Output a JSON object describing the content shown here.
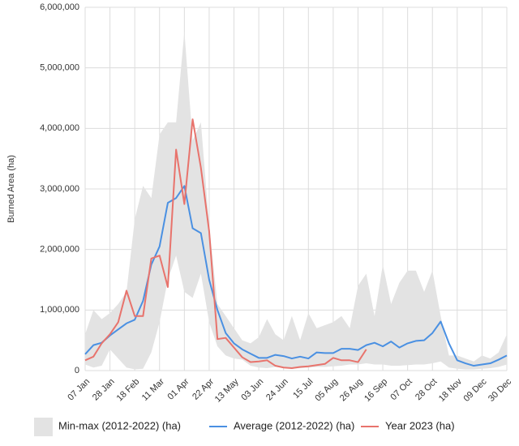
{
  "chart_data": {
    "type": "line",
    "y_label": "Burned Area (ha)",
    "categories": [
      "07 Jan",
      null,
      null,
      "28 Jan",
      null,
      null,
      "18 Feb",
      null,
      null,
      "11 Mar",
      null,
      null,
      "01 Apr",
      null,
      null,
      "22 Apr",
      null,
      null,
      "13 May",
      null,
      null,
      "03 Jun",
      null,
      null,
      "24 Jun",
      null,
      null,
      "15 Jul",
      null,
      null,
      "05 Aug",
      null,
      null,
      "26 Aug",
      null,
      null,
      "16 Sep",
      null,
      null,
      "07 Oct",
      null,
      null,
      "28 Oct",
      null,
      null,
      "18 Nov",
      null,
      null,
      "09 Dec",
      null,
      null,
      "30 Dec"
    ],
    "series": [
      {
        "name": "Min-max (2012-2022) (ha)",
        "color": "#e3e3e3",
        "type": "band",
        "low": [
          100000,
          50000,
          80000,
          350000,
          200000,
          50000,
          20000,
          30000,
          300000,
          800000,
          1500000,
          1900000,
          1300000,
          1200000,
          1600000,
          800000,
          400000,
          250000,
          200000,
          180000,
          80000,
          50000,
          40000,
          60000,
          50000,
          30000,
          40000,
          50000,
          60000,
          60000,
          70000,
          80000,
          100000,
          100000,
          120000,
          100000,
          100000,
          80000,
          80000,
          90000,
          100000,
          100000,
          120000,
          150000,
          50000,
          30000,
          20000,
          20000,
          30000,
          40000,
          60000,
          100000
        ],
        "high": [
          600000,
          1000000,
          850000,
          950000,
          1100000,
          1300000,
          2500000,
          3050000,
          2850000,
          3900000,
          4100000,
          4100000,
          5600000,
          3800000,
          4100000,
          2400000,
          1100000,
          900000,
          700000,
          500000,
          450000,
          550000,
          850000,
          600000,
          500000,
          900000,
          500000,
          950000,
          700000,
          750000,
          800000,
          900000,
          700000,
          1400000,
          1600000,
          900000,
          1750000,
          1100000,
          1450000,
          1650000,
          1650000,
          1300000,
          1650000,
          900000,
          250000,
          250000,
          200000,
          150000,
          250000,
          200000,
          300000,
          600000
        ]
      },
      {
        "name": "Average (2012-2022) (ha)",
        "color": "#4a90e2",
        "values": [
          270000,
          420000,
          460000,
          580000,
          680000,
          780000,
          840000,
          1150000,
          1750000,
          2050000,
          2770000,
          2850000,
          3050000,
          2350000,
          2270000,
          1500000,
          1000000,
          620000,
          450000,
          350000,
          280000,
          210000,
          210000,
          260000,
          240000,
          200000,
          230000,
          200000,
          300000,
          290000,
          290000,
          360000,
          360000,
          340000,
          420000,
          460000,
          400000,
          480000,
          380000,
          450000,
          490000,
          500000,
          620000,
          810000,
          450000,
          170000,
          120000,
          80000,
          100000,
          120000,
          180000,
          250000
        ]
      },
      {
        "name": "Year 2023 (ha)",
        "color": "#e8736c",
        "values": [
          170000,
          230000,
          450000,
          600000,
          800000,
          1320000,
          900000,
          900000,
          1850000,
          1900000,
          1380000,
          3650000,
          2750000,
          4150000,
          3350000,
          2300000,
          520000,
          540000,
          380000,
          220000,
          140000,
          150000,
          170000,
          80000,
          50000,
          40000,
          60000,
          70000,
          90000,
          110000,
          210000,
          170000,
          170000,
          140000,
          350000,
          null,
          null,
          null,
          null,
          null,
          null,
          null,
          null,
          null,
          null,
          null,
          null,
          null,
          null,
          null,
          null,
          null
        ]
      }
    ],
    "ylim": [
      0,
      6000000
    ],
    "yticks": [
      0,
      {
        "value": 1000000,
        "label": "1,000,000"
      },
      {
        "value": 2000000,
        "label": "2,000,000"
      },
      {
        "value": 3000000,
        "label": "3,000,000"
      },
      {
        "value": 4000000,
        "label": "4,000,000"
      },
      {
        "value": 5000000,
        "label": "5,000,000"
      },
      {
        "value": 6000000,
        "label": "6,000,000"
      }
    ],
    "grid": true,
    "legend": "bottom"
  }
}
